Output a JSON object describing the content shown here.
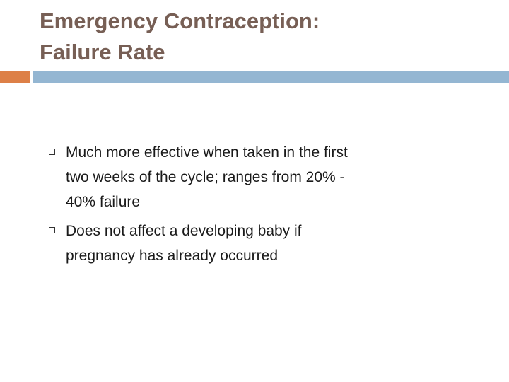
{
  "title": {
    "lines": [
      "Emergency Contraception:",
      "Failure Rate"
    ]
  },
  "bullets": [
    {
      "lines": [
        "Much more effective when taken in the first",
        "two weeks of the cycle; ranges from 20% -",
        "40% failure"
      ]
    },
    {
      "lines": [
        "Does not affect a developing baby if",
        "pregnancy has already occurred"
      ]
    }
  ]
}
